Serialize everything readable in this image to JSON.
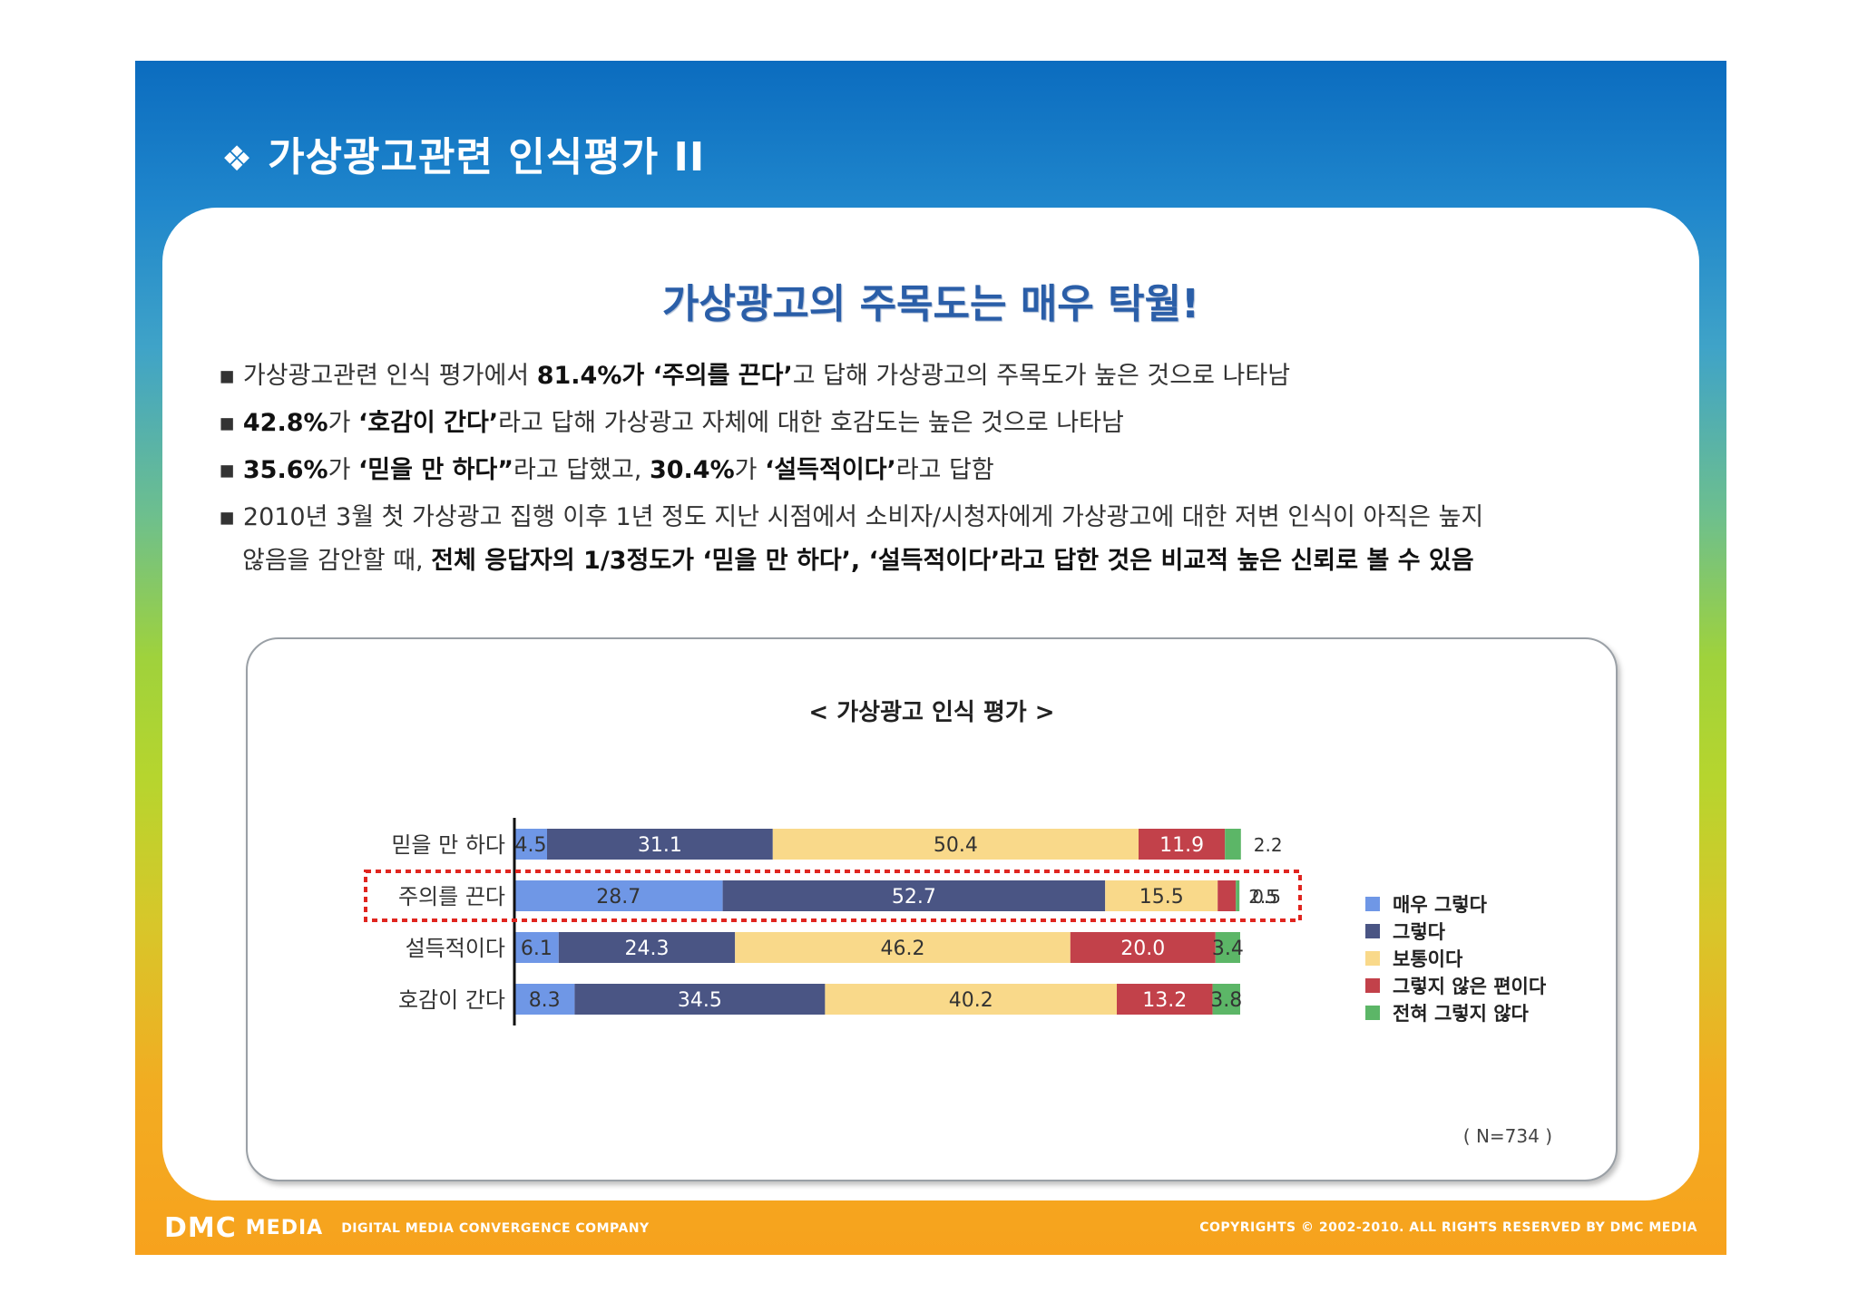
{
  "slide_title": "가상광고관련 인식평가 II",
  "title_bullet": "❖",
  "headline": "가상광고의 주목도는 매우 탁월!",
  "bullet_marker": "▪",
  "bullets": [
    {
      "segments": [
        {
          "text": "가상광고관련 인식 평가에서 ",
          "bold": false
        },
        {
          "text": "81.4%가 ‘주의를 끈다’",
          "bold": true
        },
        {
          "text": "고 답해 가상광고의 주목도가 높은 것으로 나타남",
          "bold": false
        }
      ]
    },
    {
      "segments": [
        {
          "text": "42.8%",
          "bold": true
        },
        {
          "text": "가 ",
          "bold": false
        },
        {
          "text": "‘호감이 간다’",
          "bold": true
        },
        {
          "text": "라고 답해 가상광고 자체에 대한 호감도는 높은 것으로 나타남",
          "bold": false
        }
      ]
    },
    {
      "segments": [
        {
          "text": "35.6%",
          "bold": true
        },
        {
          "text": "가 ",
          "bold": false
        },
        {
          "text": "‘믿을 만 하다”",
          "bold": true
        },
        {
          "text": "라고 답했고, ",
          "bold": false
        },
        {
          "text": "30.4%",
          "bold": true
        },
        {
          "text": "가 ",
          "bold": false
        },
        {
          "text": "‘설득적이다’",
          "bold": true
        },
        {
          "text": "라고 답함",
          "bold": false
        }
      ]
    },
    {
      "segments": [
        {
          "text": " 2010년 3월 첫 가상광고 집행 이후 1년 정도 지난 시점에서 소비자/시청자에게 가상광고에 대한 저변 인식이 아직은 높지",
          "bold": false
        }
      ]
    },
    {
      "continuation": true,
      "segments": [
        {
          "text": "않음을 감안할 때, ",
          "bold": false
        },
        {
          "text": "전체 응답자의 1/3정도가 ‘믿을 만 하다’, ‘설득적이다’라고 답한 것은 비교적 높은 신뢰로 볼 수 있음",
          "bold": true
        }
      ]
    }
  ],
  "chart_title": "< 가상광고 인식 평가 >",
  "n_note": "( N=734 )",
  "colors": {
    "very_yes": "#6f97e6",
    "yes": "#4a5584",
    "neutral": "#f9d98a",
    "no": "#c2414a",
    "very_no": "#5cb667",
    "highlight_border": "#e0251f",
    "headline": "#2a5ea8"
  },
  "chart_data": {
    "type": "bar",
    "orientation": "horizontal",
    "stacked": true,
    "categories": [
      "믿을 만 하다",
      "주의를 끈다",
      "설득적이다",
      "호감이 간다"
    ],
    "series": [
      {
        "name": "매우 그렇다",
        "color": "#6f97e6",
        "values": [
          4.5,
          28.7,
          6.1,
          8.3
        ]
      },
      {
        "name": "그렇다",
        "color": "#4a5584",
        "values": [
          31.1,
          52.7,
          24.3,
          34.5
        ]
      },
      {
        "name": "보통이다",
        "color": "#f9d98a",
        "values": [
          50.4,
          15.5,
          46.2,
          40.2
        ]
      },
      {
        "name": "그렇지 않은 편이다",
        "color": "#c2414a",
        "values": [
          11.9,
          2.5,
          20.0,
          13.2
        ]
      },
      {
        "name": "전혀 그렇지 않다",
        "color": "#5cb667",
        "values": [
          2.2,
          0.5,
          3.4,
          3.8
        ]
      }
    ],
    "value_labels": [
      [
        "4.5",
        "31.1",
        "50.4",
        "11.9",
        "2.2"
      ],
      [
        "28.7",
        "52.7",
        "15.5",
        "2.5",
        "0.5"
      ],
      [
        "6.1",
        "24.3",
        "46.2",
        "20.0",
        "3.4"
      ],
      [
        "8.3",
        "34.5",
        "40.2",
        "13.2",
        "3.8"
      ]
    ],
    "xlim": [
      0,
      100
    ],
    "highlighted_category": "주의를 끈다",
    "legend_position": "right",
    "grid": false
  },
  "footer": {
    "logo": "DMC",
    "brand": "MEDIA",
    "tagline": "DIGITAL MEDIA CONVERGENCE COMPANY",
    "copyright": "COPYRIGHTS © 2002-2010. ALL RIGHTS RESERVED BY DMC MEDIA"
  }
}
